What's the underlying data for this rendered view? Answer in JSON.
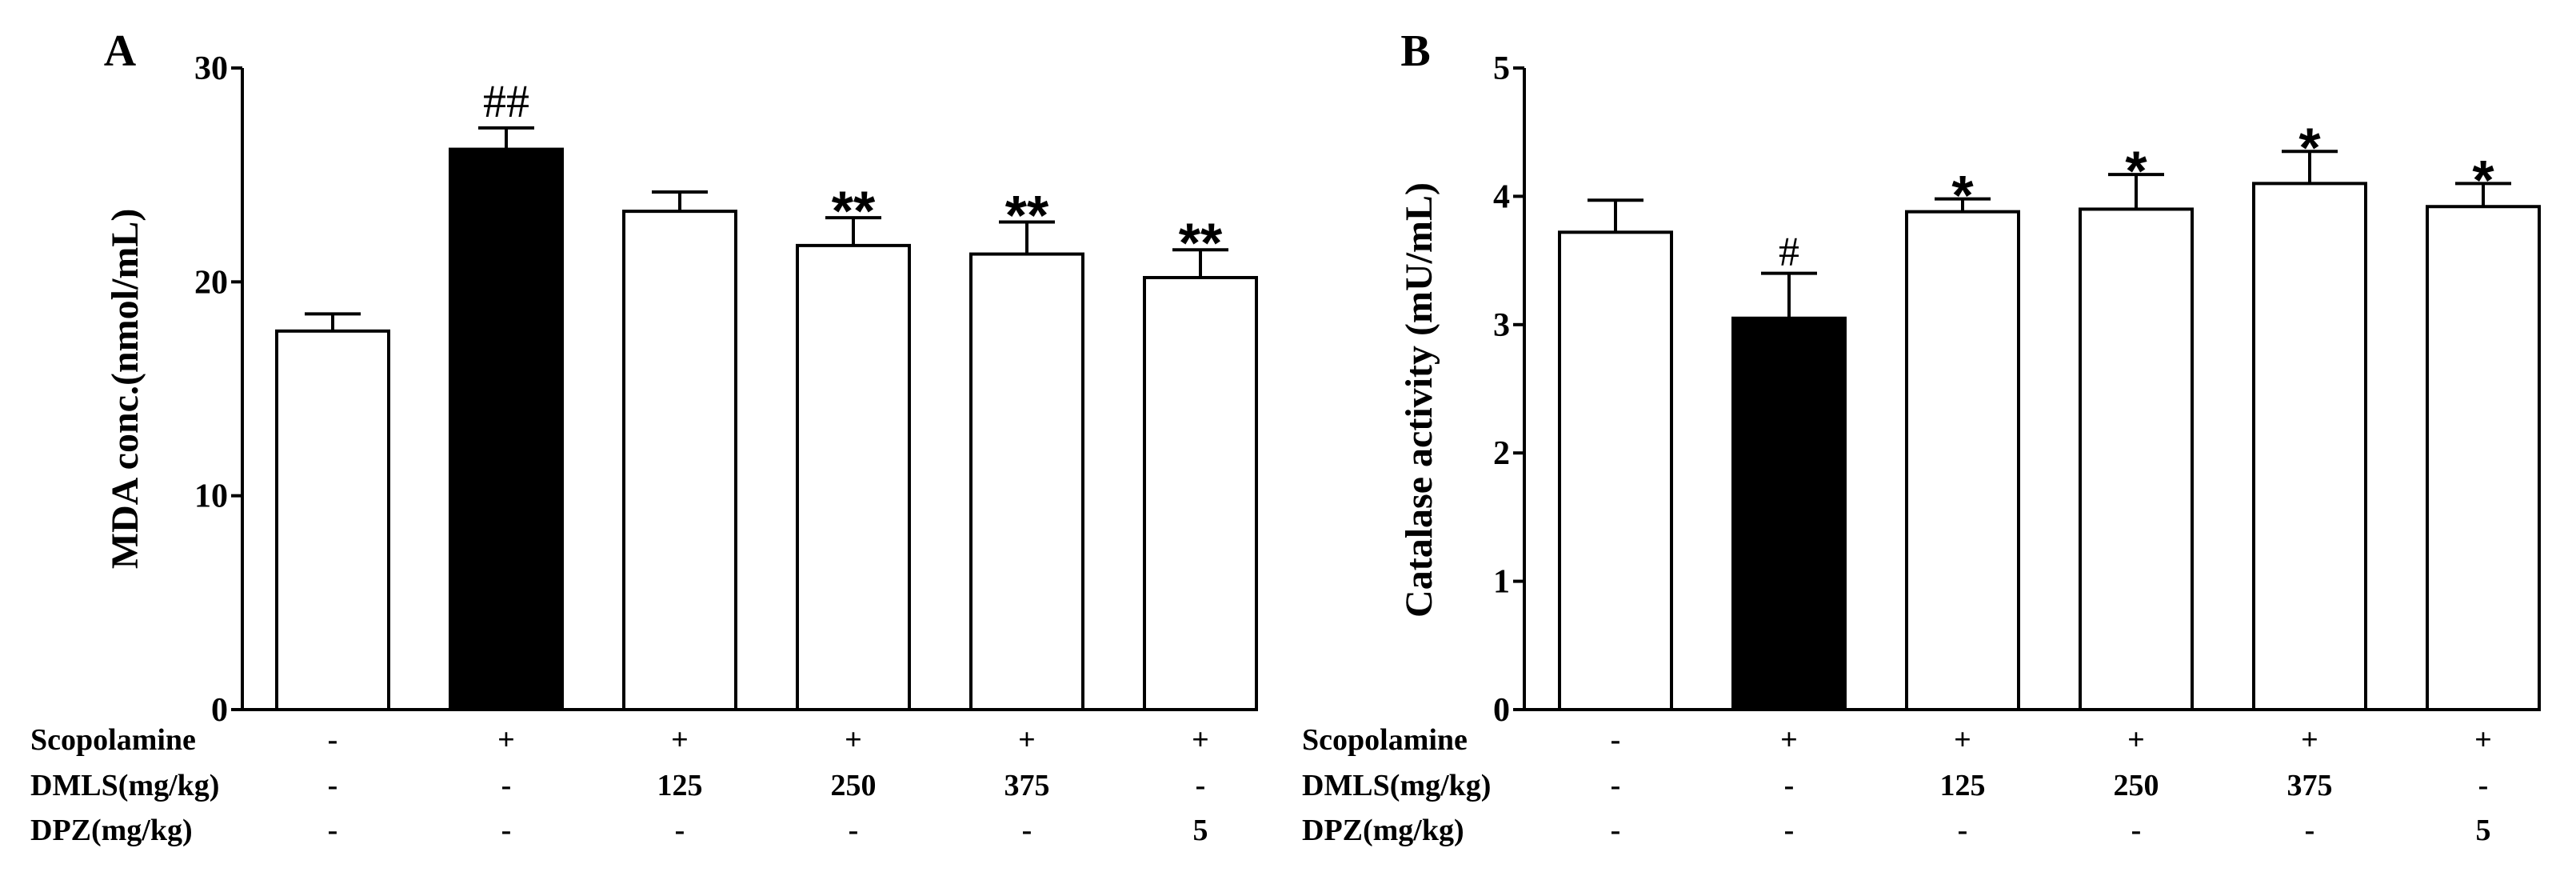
{
  "chart_data": [
    {
      "panel": "A",
      "type": "bar",
      "ylabel": "MDA conc.(nmol/mL)",
      "ylim": [
        0,
        30
      ],
      "yticks": [
        "0",
        "10",
        "20",
        "30"
      ],
      "groups": 6,
      "values": [
        17.7,
        26.2,
        23.3,
        21.7,
        21.3,
        20.2
      ],
      "errors": [
        0.8,
        1.0,
        0.9,
        1.3,
        1.5,
        1.3
      ],
      "fills": [
        "#ffffff",
        "#000000",
        "#ffffff",
        "#ffffff",
        "#ffffff",
        "#ffffff"
      ],
      "annotations": [
        "",
        "##",
        "",
        "**",
        "**",
        "**"
      ],
      "rows": [
        {
          "label": "Scopolamine",
          "cells": [
            "-",
            "+",
            "+",
            "+",
            "+",
            "+"
          ]
        },
        {
          "label": "DMLS(mg/kg)",
          "cells": [
            "-",
            "-",
            "125",
            "250",
            "375",
            "-"
          ]
        },
        {
          "label": "DPZ(mg/kg)",
          "cells": [
            "-",
            "-",
            "-",
            "-",
            "-",
            "5"
          ]
        }
      ]
    },
    {
      "panel": "B",
      "type": "bar",
      "ylabel": "Catalase activity (mU/mL)",
      "ylim": [
        0,
        5
      ],
      "yticks": [
        "0",
        "1",
        "2",
        "3",
        "4",
        "5"
      ],
      "groups": 6,
      "values": [
        3.72,
        3.05,
        3.88,
        3.9,
        4.1,
        3.92
      ],
      "errors": [
        0.25,
        0.35,
        0.1,
        0.27,
        0.25,
        0.18
      ],
      "fills": [
        "#ffffff",
        "#000000",
        "#ffffff",
        "#ffffff",
        "#ffffff",
        "#ffffff"
      ],
      "annotations": [
        "",
        "#",
        "*",
        "*",
        "*",
        "*"
      ],
      "rows": [
        {
          "label": "Scopolamine",
          "cells": [
            "-",
            "+",
            "+",
            "+",
            "+",
            "+"
          ]
        },
        {
          "label": "DMLS(mg/kg)",
          "cells": [
            "-",
            "-",
            "125",
            "250",
            "375",
            "-"
          ]
        },
        {
          "label": "DPZ(mg/kg)",
          "cells": [
            "-",
            "-",
            "-",
            "-",
            "-",
            "5"
          ]
        }
      ]
    }
  ]
}
